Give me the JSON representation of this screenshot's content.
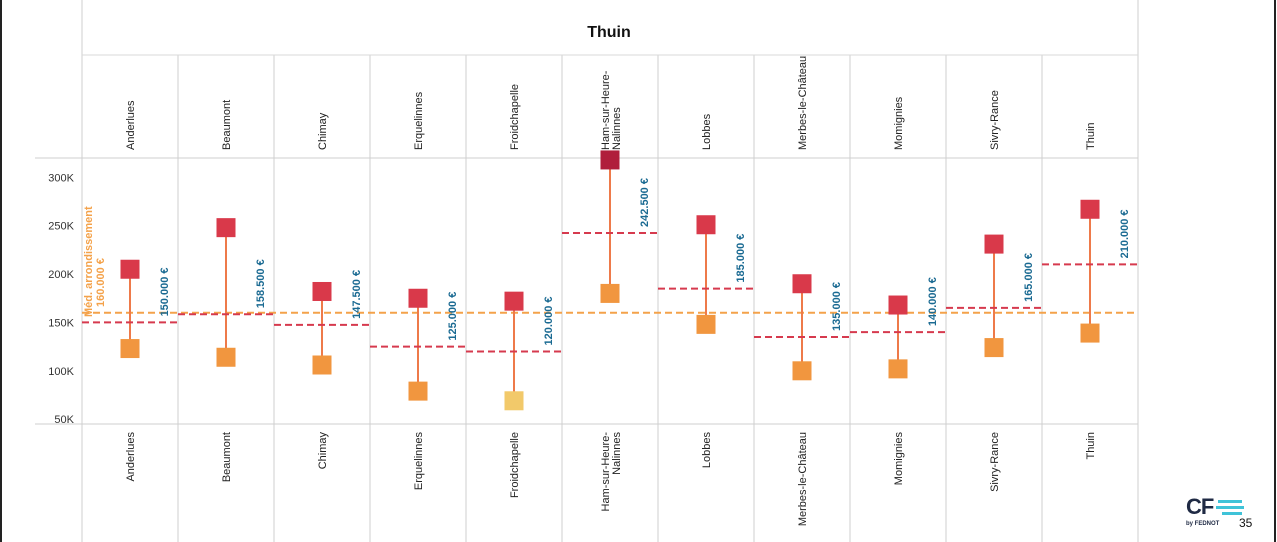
{
  "chart_data": {
    "type": "range",
    "title": "Thuin",
    "categories": [
      "Anderlues",
      "Beaumont",
      "Chimay",
      "Erquelinnes",
      "Froidchapelle",
      "Ham-sur-Heure-Nalinnes",
      "Lobbes",
      "Merbes-le-Château",
      "Momignies",
      "Sivry-Rance",
      "Thuin"
    ],
    "yticks": [
      "50K",
      "100K",
      "150K",
      "200K",
      "250K",
      "300K"
    ],
    "ylim": [
      45000,
      320000
    ],
    "low": [
      123000,
      114000,
      106000,
      79000,
      69000,
      180000,
      148000,
      100000,
      102000,
      124000,
      139000
    ],
    "high": [
      205000,
      248000,
      182000,
      175000,
      172000,
      318000,
      251000,
      190000,
      168000,
      231000,
      267000
    ],
    "median": [
      150000,
      158500,
      147500,
      125000,
      120000,
      242500,
      185000,
      135000,
      140000,
      165000,
      210000
    ],
    "median_labels": [
      "150.000 €",
      "158.500 €",
      "147.500 €",
      "125.000 €",
      "120.000 €",
      "242.500 €",
      "185.000 €",
      "135.000 €",
      "140.000 €",
      "165.000 €",
      "210.000 €"
    ],
    "reference": {
      "value": 160000,
      "label": "Méd. arrondissement",
      "value_label": "160.000 €"
    },
    "colors": {
      "high": "#d9394a",
      "high_max": "#b01e3c",
      "low": "#f1963f",
      "low_min": "#f2c96a",
      "median": "#d63a4e",
      "reference": "#f4a24a",
      "label": "#1a6a92",
      "reference_label": "#f4a24a"
    }
  },
  "footer": {
    "logo_text": "CF",
    "logo_sub": "by FEDNOT",
    "page_number": "35"
  }
}
